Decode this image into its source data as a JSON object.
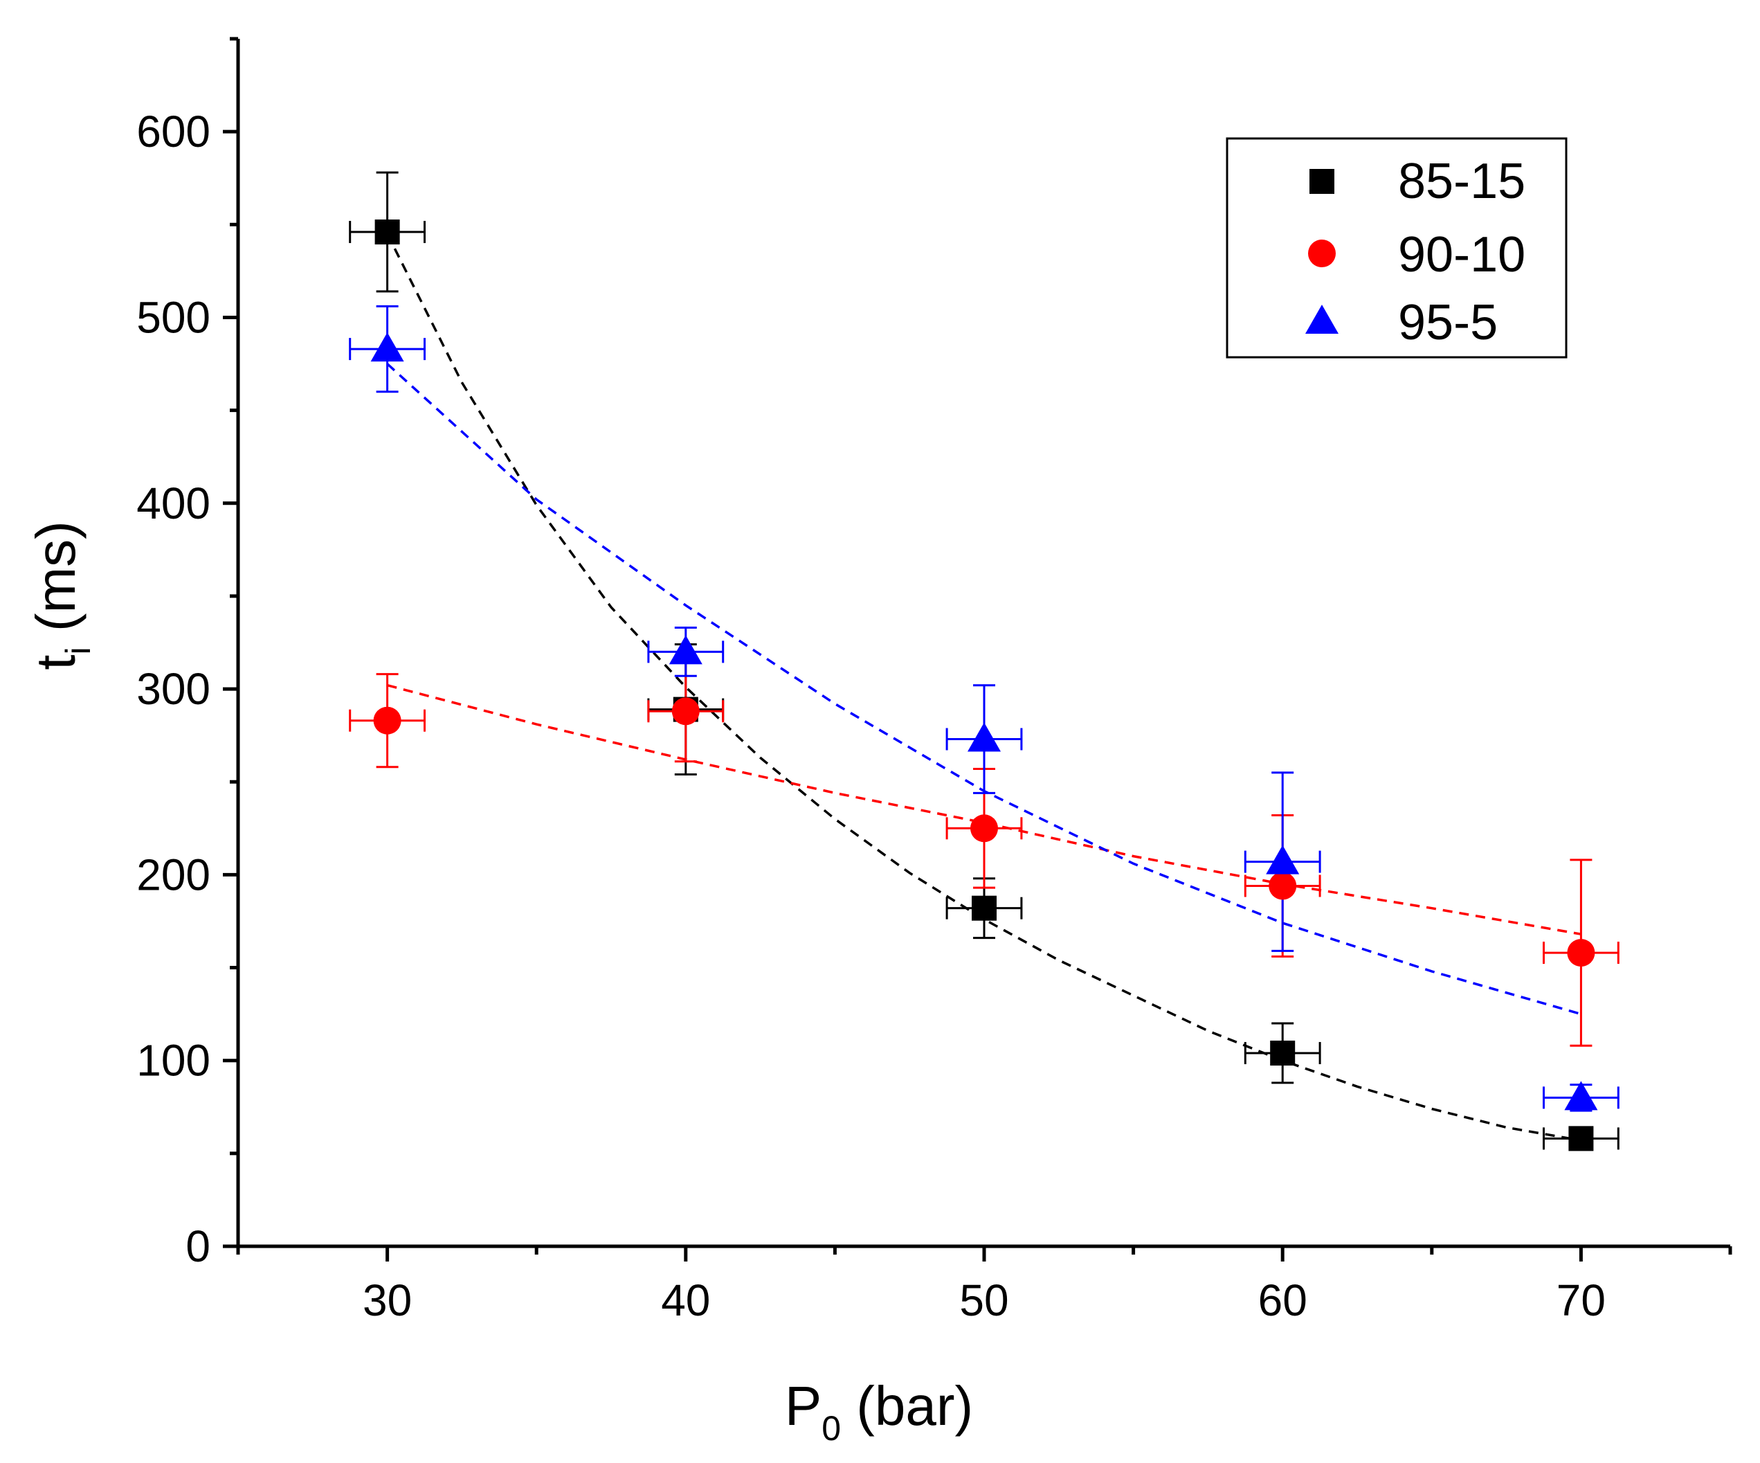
{
  "chart_data": {
    "type": "scatter",
    "title": "",
    "xlabel": {
      "main": "P",
      "sub": "0",
      "rest": " (bar)"
    },
    "ylabel": {
      "main": "t",
      "sub": "i",
      "rest": " (ms)"
    },
    "xlim": [
      25,
      75
    ],
    "ylim": [
      0,
      650
    ],
    "x_ticks": [
      30,
      40,
      50,
      60,
      70
    ],
    "x_minor_ticks": [
      25,
      35,
      45,
      55,
      65,
      75
    ],
    "y_ticks": [
      0,
      100,
      200,
      300,
      400,
      500,
      600
    ],
    "y_minor_ticks": [
      50,
      150,
      250,
      350,
      450,
      550,
      650
    ],
    "legend_position": "top-right",
    "x_error": 1.25,
    "series": [
      {
        "name": "85-15",
        "color": "#000000",
        "marker": "square",
        "x": [
          30,
          40,
          50,
          60,
          70
        ],
        "y": [
          546,
          289,
          182,
          104,
          58
        ],
        "y_err": [
          32,
          35,
          16,
          16,
          6
        ],
        "fit": [
          [
            30,
            545
          ],
          [
            32.5,
            465
          ],
          [
            35,
            399
          ],
          [
            37.5,
            344
          ],
          [
            40,
            301
          ],
          [
            42.5,
            263
          ],
          [
            45,
            230
          ],
          [
            47.5,
            201
          ],
          [
            50,
            176
          ],
          [
            52.5,
            154
          ],
          [
            55,
            135
          ],
          [
            57.5,
            116
          ],
          [
            60,
            100
          ],
          [
            62.5,
            86
          ],
          [
            65,
            74
          ],
          [
            67.5,
            64
          ],
          [
            70,
            57
          ]
        ]
      },
      {
        "name": "90-10",
        "color": "#ff0000",
        "marker": "circle",
        "x": [
          30,
          40,
          50,
          60,
          70
        ],
        "y": [
          283,
          288,
          225,
          194,
          158
        ],
        "y_err": [
          25,
          27,
          32,
          38,
          50
        ],
        "fit": [
          [
            30,
            302
          ],
          [
            35,
            281
          ],
          [
            40,
            262
          ],
          [
            45,
            244
          ],
          [
            50,
            228
          ],
          [
            55,
            210
          ],
          [
            60,
            195
          ],
          [
            65,
            182
          ],
          [
            70,
            168
          ]
        ]
      },
      {
        "name": "95-5",
        "color": "#0000ff",
        "marker": "triangle",
        "x": [
          30,
          40,
          50,
          60,
          70
        ],
        "y": [
          483,
          320,
          273,
          207,
          80
        ],
        "y_err": [
          23,
          13,
          29,
          48,
          7
        ],
        "fit": [
          [
            30,
            475
          ],
          [
            35,
            402
          ],
          [
            40,
            345
          ],
          [
            45,
            292
          ],
          [
            50,
            245
          ],
          [
            55,
            206
          ],
          [
            60,
            174
          ],
          [
            65,
            148
          ],
          [
            70,
            125
          ]
        ]
      }
    ]
  }
}
